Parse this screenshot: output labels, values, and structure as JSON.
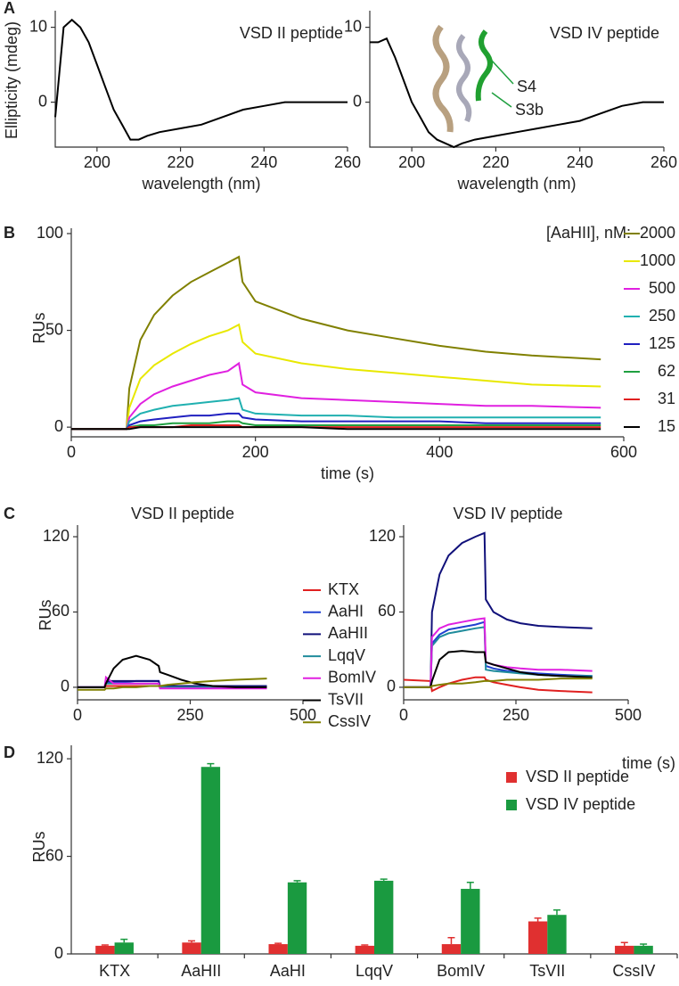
{
  "chart_data": [
    {
      "type": "line",
      "panel_label": "A",
      "title": "VSD II peptide",
      "title_color": "#e03030",
      "y_label": "Ellipticity (mdeg)",
      "x_label": "wavelength (nm)",
      "x": [
        190,
        192,
        194,
        196,
        198,
        200,
        202,
        204,
        206,
        208,
        210,
        212,
        215,
        220,
        225,
        230,
        235,
        240,
        245,
        250,
        255,
        260
      ],
      "series": [
        {
          "color": "#000000",
          "values": [
            -2,
            10,
            11,
            10,
            8,
            5,
            2,
            -1,
            -3,
            -5,
            -5,
            -4.5,
            -4,
            -3.5,
            -3,
            -2,
            -1,
            -0.5,
            0,
            0,
            0,
            0
          ]
        }
      ],
      "xlim": [
        190,
        260
      ],
      "xticks": [
        200,
        220,
        240,
        260
      ],
      "ylim": [
        -6,
        11.5
      ],
      "yticks": [
        0,
        10
      ]
    },
    {
      "type": "line",
      "title": "VSD IV peptide",
      "title_color": "#20a040",
      "x_label": "wavelength (nm)",
      "annotations": [
        "S4",
        "S3b"
      ],
      "x": [
        190,
        192,
        194,
        196,
        198,
        200,
        202,
        204,
        206,
        208,
        210,
        212,
        215,
        220,
        225,
        230,
        235,
        240,
        245,
        250,
        255,
        260
      ],
      "series": [
        {
          "color": "#000000",
          "values": [
            8,
            8,
            8.5,
            6,
            3,
            0,
            -2,
            -4,
            -5,
            -5.5,
            -6,
            -5.5,
            -5,
            -4.5,
            -4,
            -3.5,
            -3,
            -2.5,
            -1.5,
            -0.5,
            0,
            0
          ]
        }
      ],
      "xlim": [
        190,
        260
      ],
      "xticks": [
        200,
        220,
        240,
        260
      ],
      "ylim": [
        -6,
        11.5
      ],
      "yticks": [
        0,
        10
      ]
    },
    {
      "type": "line",
      "panel_label": "B",
      "y_label": "RUs",
      "x_label": "time (s)",
      "legend_title": "[AaHII], nM:",
      "x": [
        0,
        60,
        63,
        75,
        90,
        110,
        130,
        150,
        170,
        182,
        186,
        200,
        250,
        300,
        350,
        400,
        450,
        500,
        575
      ],
      "series": [
        {
          "name": "2000",
          "color": "#808000",
          "values": [
            -1,
            -1,
            20,
            45,
            58,
            68,
            75,
            80,
            85,
            88,
            75,
            65,
            56,
            50,
            46,
            42,
            39,
            37,
            35
          ]
        },
        {
          "name": "1000",
          "color": "#e8e800",
          "values": [
            -1,
            -1,
            10,
            25,
            32,
            38,
            43,
            47,
            50,
            53,
            44,
            38,
            33,
            30,
            28,
            26,
            24,
            22,
            21
          ]
        },
        {
          "name": "500",
          "color": "#e020e0",
          "values": [
            -1,
            -1,
            5,
            12,
            17,
            21,
            24,
            27,
            29,
            33,
            22,
            18,
            15,
            14,
            13,
            12,
            11,
            11,
            10
          ]
        },
        {
          "name": "250",
          "color": "#20b0b0",
          "values": [
            -1,
            -1,
            3,
            7,
            9,
            11,
            12,
            13,
            14,
            15,
            9,
            7,
            6,
            6,
            5,
            5,
            5,
            5,
            5
          ]
        },
        {
          "name": "125",
          "color": "#2020c0",
          "values": [
            -1,
            -1,
            1,
            3,
            4,
            5,
            6,
            6,
            7,
            7,
            5,
            4,
            3,
            3,
            3,
            3,
            2,
            2,
            2
          ]
        },
        {
          "name": "62",
          "color": "#20a040",
          "values": [
            -1,
            -1,
            0,
            1,
            1,
            2,
            2,
            2,
            3,
            3,
            2,
            1,
            1,
            1,
            1,
            1,
            1,
            1,
            1
          ]
        },
        {
          "name": "31",
          "color": "#e02020",
          "values": [
            -1,
            -1,
            0,
            0,
            0,
            0,
            1,
            1,
            1,
            1,
            0,
            0,
            0,
            0,
            0,
            0,
            0,
            0,
            0
          ]
        },
        {
          "name": "15",
          "color": "#000000",
          "values": [
            -1,
            -1,
            -1,
            0,
            0,
            0,
            0,
            0,
            0,
            0,
            0,
            0,
            0,
            -1,
            -1,
            -1,
            -1,
            -1,
            -1
          ]
        }
      ],
      "xlim": [
        0,
        600
      ],
      "xticks": [
        0,
        200,
        400,
        600
      ],
      "ylim": [
        -5,
        100
      ],
      "yticks": [
        0,
        50,
        100
      ]
    },
    {
      "type": "line",
      "panel_label": "C",
      "title": "VSD II peptide",
      "y_label": "RUs",
      "x": [
        0,
        60,
        63,
        80,
        100,
        130,
        160,
        180,
        183,
        200,
        230,
        260,
        300,
        350,
        420
      ],
      "series": [
        {
          "name": "KTX",
          "color": "#e02020",
          "values": [
            0,
            0,
            1,
            1,
            1,
            1,
            1,
            1,
            0,
            0,
            0,
            0,
            0,
            0,
            0
          ]
        },
        {
          "name": "AaHI",
          "color": "#2040d0",
          "values": [
            0,
            0,
            4,
            4,
            4,
            5,
            5,
            5,
            0,
            0,
            0,
            0,
            0,
            0,
            0
          ]
        },
        {
          "name": "AaHII",
          "color": "#10107a",
          "values": [
            0,
            0,
            5,
            5,
            5,
            5,
            5,
            5,
            1,
            1,
            1,
            1,
            1,
            1,
            1
          ]
        },
        {
          "name": "LqqV",
          "color": "#208c9c",
          "values": [
            0,
            0,
            3,
            3,
            3,
            3,
            3,
            3,
            0,
            0,
            0,
            0,
            0,
            0,
            0
          ]
        },
        {
          "name": "BomIV",
          "color": "#e020e0",
          "values": [
            0,
            0,
            8,
            3,
            3,
            3,
            3,
            3,
            -1,
            -1,
            -1,
            -1,
            -1,
            -1,
            -1
          ]
        },
        {
          "name": "TsVII",
          "color": "#000000",
          "values": [
            0,
            0,
            3,
            15,
            22,
            25,
            22,
            17,
            12,
            10,
            6,
            3,
            1,
            0,
            0
          ]
        },
        {
          "name": "CssIV",
          "color": "#808000",
          "values": [
            -2,
            -2,
            -1,
            -1,
            0,
            0,
            1,
            1,
            1,
            2,
            3,
            4,
            5,
            6,
            7
          ]
        }
      ],
      "xlim": [
        0,
        500
      ],
      "xticks": [
        0,
        250,
        500
      ],
      "ylim": [
        -10,
        125
      ],
      "yticks": [
        0,
        60,
        120
      ]
    },
    {
      "type": "line",
      "title": "VSD IV peptide",
      "x_label": "time (s)",
      "x": [
        0,
        60,
        63,
        80,
        100,
        130,
        160,
        180,
        183,
        200,
        230,
        260,
        300,
        350,
        420
      ],
      "series": [
        {
          "color": "#e02020",
          "values": [
            6,
            5,
            -3,
            0,
            3,
            6,
            8,
            8,
            6,
            4,
            2,
            0,
            -2,
            -3,
            -4
          ]
        },
        {
          "color": "#2040d0",
          "values": [
            0,
            0,
            35,
            42,
            46,
            48,
            50,
            52,
            17,
            15,
            13,
            12,
            11,
            10,
            9
          ]
        },
        {
          "color": "#10107a",
          "values": [
            0,
            0,
            60,
            90,
            105,
            115,
            120,
            123,
            70,
            60,
            54,
            51,
            49,
            48,
            47
          ]
        },
        {
          "color": "#208c9c",
          "values": [
            0,
            0,
            33,
            40,
            43,
            45,
            47,
            48,
            14,
            13,
            12,
            11,
            10,
            9,
            9
          ]
        },
        {
          "color": "#e020e0",
          "values": [
            0,
            0,
            40,
            47,
            50,
            52,
            54,
            55,
            20,
            18,
            16,
            15,
            14,
            14,
            13
          ]
        },
        {
          "color": "#000000",
          "values": [
            0,
            0,
            5,
            22,
            28,
            29,
            28,
            28,
            20,
            18,
            15,
            12,
            10,
            9,
            8
          ]
        },
        {
          "color": "#808000",
          "values": [
            0,
            0,
            1,
            2,
            3,
            3,
            4,
            5,
            5,
            5,
            6,
            6,
            6,
            7,
            7
          ]
        }
      ],
      "xlim": [
        0,
        500
      ],
      "xticks": [
        0,
        250,
        500
      ],
      "ylim": [
        -10,
        125
      ],
      "yticks": [
        0,
        60,
        120
      ]
    },
    {
      "type": "bar",
      "panel_label": "D",
      "y_label": "RUs",
      "categories": [
        "KTX",
        "AaHII",
        "AaHI",
        "LqqV",
        "BomIV",
        "TsVII",
        "CssIV"
      ],
      "series": [
        {
          "name": "VSD II peptide",
          "color": "#e03030",
          "values": [
            5,
            7,
            6,
            5,
            6,
            20,
            5
          ],
          "errors": [
            0.5,
            1,
            0.5,
            0.5,
            4,
            2,
            2
          ]
        },
        {
          "name": "VSD IV peptide",
          "color": "#1a9a40",
          "values": [
            7,
            115,
            44,
            45,
            40,
            24,
            5
          ],
          "errors": [
            2,
            2,
            1,
            1,
            4,
            3,
            1
          ]
        }
      ],
      "ylim": [
        0,
        125
      ],
      "yticks": [
        0,
        60,
        120
      ]
    }
  ]
}
